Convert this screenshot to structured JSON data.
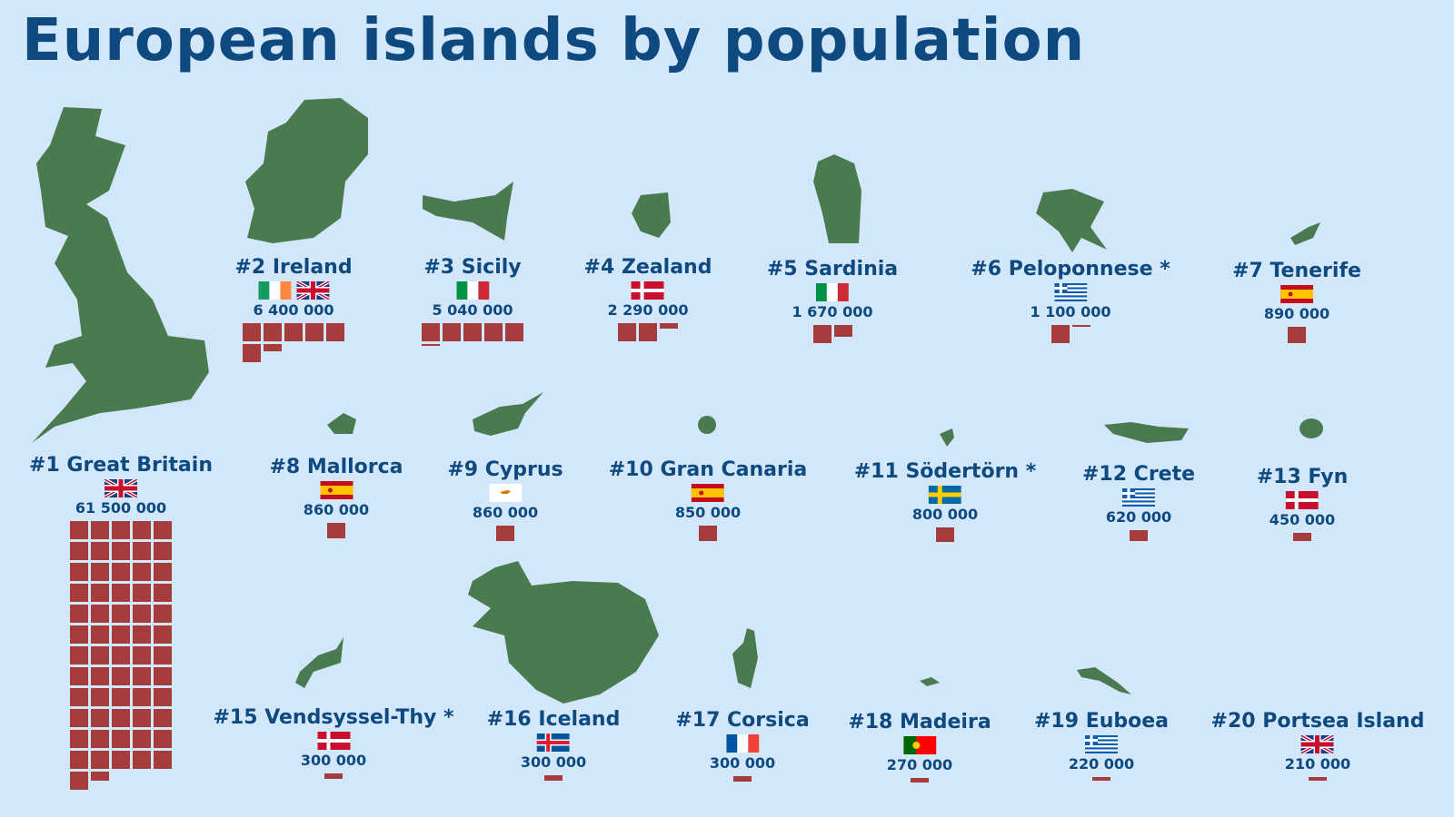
{
  "title": "European islands by population",
  "chart_data": {
    "type": "pictogram",
    "title": "European islands by population",
    "unit_per_square": 1000000,
    "colors": {
      "land": "#4a7a4f",
      "square": "#a63c3c",
      "text": "#0e4a80",
      "background": "#d3e7fb"
    },
    "islands": [
      {
        "rank_label": "#1 Great Britain",
        "flags": [
          "gb"
        ],
        "population_label": "61 500 000",
        "population": 61500000
      },
      {
        "rank_label": "#2 Ireland",
        "flags": [
          "ie",
          "gb"
        ],
        "population_label": "6 400 000",
        "population": 6400000
      },
      {
        "rank_label": "#3 Sicily",
        "flags": [
          "it"
        ],
        "population_label": "5 040 000",
        "population": 5040000
      },
      {
        "rank_label": "#4 Zealand",
        "flags": [
          "dk"
        ],
        "population_label": "2 290 000",
        "population": 2290000
      },
      {
        "rank_label": "#5 Sardinia",
        "flags": [
          "it"
        ],
        "population_label": "1 670 000",
        "population": 1670000
      },
      {
        "rank_label": "#6 Peloponnese *",
        "flags": [
          "gr"
        ],
        "population_label": "1 100 000",
        "population": 1100000
      },
      {
        "rank_label": "#7 Tenerife",
        "flags": [
          "es"
        ],
        "population_label": "890 000",
        "population": 890000
      },
      {
        "rank_label": "#8 Mallorca",
        "flags": [
          "es"
        ],
        "population_label": "860 000",
        "population": 860000
      },
      {
        "rank_label": "#9 Cyprus",
        "flags": [
          "cy"
        ],
        "population_label": "860 000",
        "population": 860000
      },
      {
        "rank_label": "#10 Gran Canaria",
        "flags": [
          "es"
        ],
        "population_label": "850 000",
        "population": 850000
      },
      {
        "rank_label": "#11 Södertörn *",
        "flags": [
          "se"
        ],
        "population_label": "800 000",
        "population": 800000
      },
      {
        "rank_label": "#12 Crete",
        "flags": [
          "gr"
        ],
        "population_label": "620 000",
        "population": 620000
      },
      {
        "rank_label": "#13 Fyn",
        "flags": [
          "dk"
        ],
        "population_label": "450 000",
        "population": 450000
      },
      {
        "rank_label": "#15 Vendsyssel-Thy *",
        "flags": [
          "dk"
        ],
        "population_label": "300 000",
        "population": 300000
      },
      {
        "rank_label": "#16 Iceland",
        "flags": [
          "is"
        ],
        "population_label": "300 000",
        "population": 300000
      },
      {
        "rank_label": "#17 Corsica",
        "flags": [
          "fr"
        ],
        "population_label": "300 000",
        "population": 300000
      },
      {
        "rank_label": "#18 Madeira",
        "flags": [
          "pt"
        ],
        "population_label": "270 000",
        "population": 270000
      },
      {
        "rank_label": "#19 Euboea",
        "flags": [
          "gr"
        ],
        "population_label": "220 000",
        "population": 220000
      },
      {
        "rank_label": "#20 Portsea Island",
        "flags": [
          "gb"
        ],
        "population_label": "210 000",
        "population": 210000
      }
    ]
  }
}
